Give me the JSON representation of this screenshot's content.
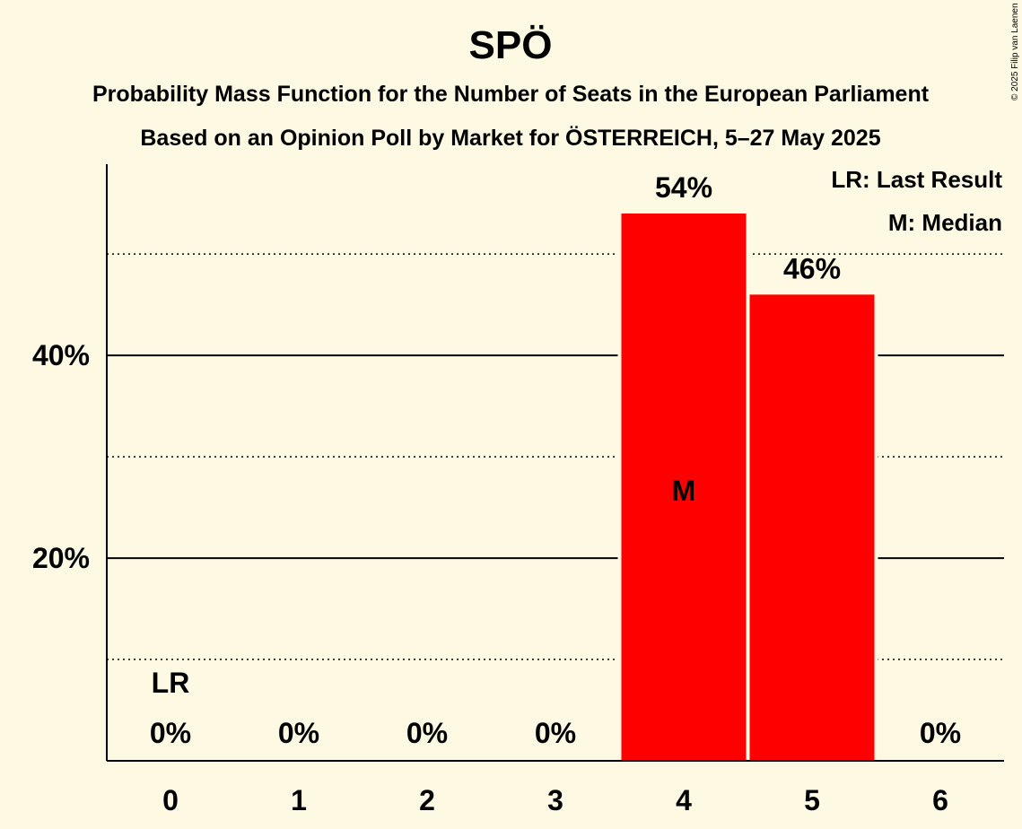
{
  "chart_data": {
    "type": "bar",
    "title": "SPÖ",
    "subtitle1": "Probability Mass Function for the Number of Seats in the European Parliament",
    "subtitle2": "Based on an Opinion Poll by Market for ÖSTERREICH, 5–27 May 2025",
    "categories": [
      "0",
      "1",
      "2",
      "3",
      "4",
      "5",
      "6"
    ],
    "values": [
      0,
      0,
      0,
      0,
      54,
      46,
      0
    ],
    "data_labels": [
      "0%",
      "0%",
      "0%",
      "0%",
      "54%",
      "46%",
      "0%"
    ],
    "ylim": [
      0,
      59
    ],
    "yticks_major": [
      20,
      40
    ],
    "ytick_labels": [
      "20%",
      "40%"
    ],
    "yticks_minor": [
      10,
      30,
      50
    ],
    "last_result_index": 0,
    "last_result_label": "LR",
    "median_index": 4,
    "median_label": "M",
    "legend": [
      "LR: Last Result",
      "M: Median"
    ],
    "bar_color": "#ff0000",
    "copyright": "© 2025 Filip van Laenen"
  }
}
